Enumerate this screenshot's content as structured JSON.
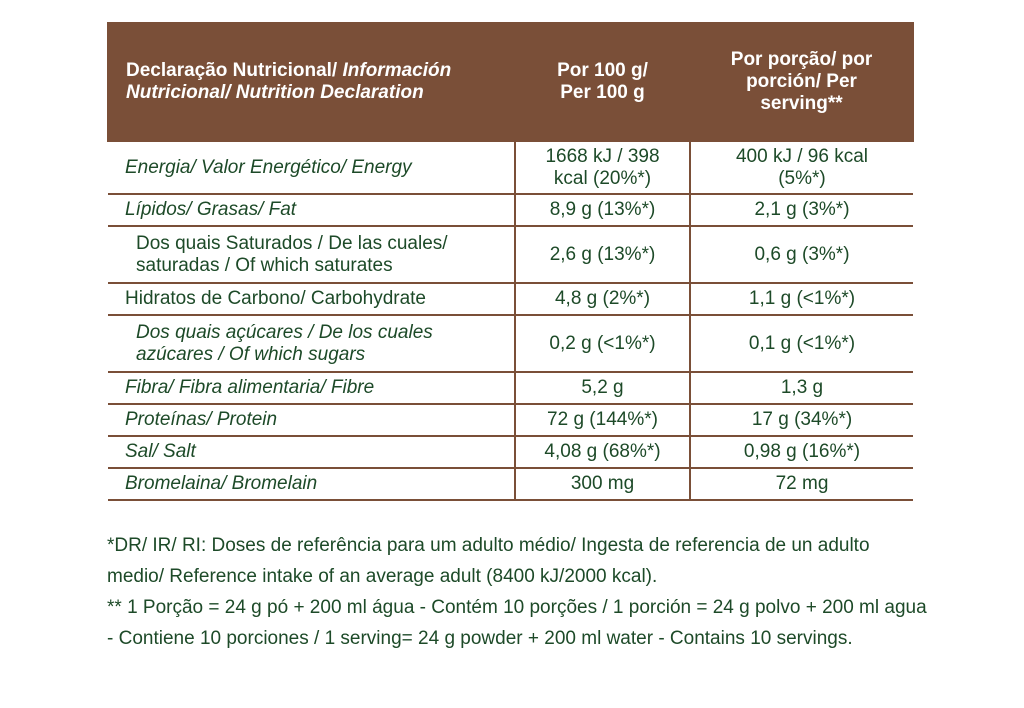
{
  "header": {
    "col1_regular": "Declaração Nutricional/",
    "col1_italic_a": "Información",
    "col1_italic_b": "Nutricional/ Nutrition Declaration",
    "col2_line1": "Por 100 g/",
    "col2_line2": "Per 100 g",
    "col3_line1": "Por porção/ por",
    "col3_line2": "porción/ Per",
    "col3_line3": "serving**"
  },
  "rows": [
    {
      "label": "Energia/ Valor Energético/ Energy",
      "per100_a": "1668 kJ / 398",
      "per100_b": "kcal (20%*)",
      "serving_a": "400 kJ / 96 kcal",
      "serving_b": "(5%*)"
    },
    {
      "label": "Lípidos/ Grasas/ Fat",
      "per100": "8,9 g (13%*)",
      "serving": "2,1 g (3%*)"
    },
    {
      "label_a": "Dos quais Saturados / De las cuales/",
      "label_b": "saturadas / Of which saturates",
      "per100": "2,6 g (13%*)",
      "serving": "0,6 g (3%*)"
    },
    {
      "label": "Hidratos de Carbono/ Carbohydrate",
      "per100": "4,8 g (2%*)",
      "serving": "1,1 g (<1%*)"
    },
    {
      "label_a": "Dos quais açúcares / De los cuales",
      "label_b": "azúcares / Of which sugars",
      "per100": "0,2 g (<1%*)",
      "serving": "0,1 g (<1%*)"
    },
    {
      "label": "Fibra/ Fibra alimentaria/ Fibre",
      "per100": "5,2 g",
      "serving": "1,3 g"
    },
    {
      "label": "Proteínas/ Protein",
      "per100": "72 g (144%*)",
      "serving": "17 g (34%*)"
    },
    {
      "label": "Sal/ Salt",
      "per100": "4,08 g (68%*)",
      "serving": "0,98 g (16%*)"
    },
    {
      "label": "Bromelaina/ Bromelain",
      "per100": "300 mg",
      "serving": "72 mg"
    }
  ],
  "notes": {
    "ref_intake": "*DR/ IR/ RI: Doses de referência para um adulto médio/ Ingesta de referencia de un adulto medio/ Reference intake of an average adult  (8400 kJ/2000 kcal).",
    "serving_info": "** 1 Porção = 24 g pó + 200 ml água - Contém 10 porções / 1 porción = 24 g polvo + 200 ml agua - Contiene 10 porciones / 1 serving= 24 g powder + 200 ml water - Contains 10 servings."
  },
  "colors": {
    "header_bg": "#7a4f38",
    "text": "#1d4a28",
    "border": "#7a4f38"
  }
}
